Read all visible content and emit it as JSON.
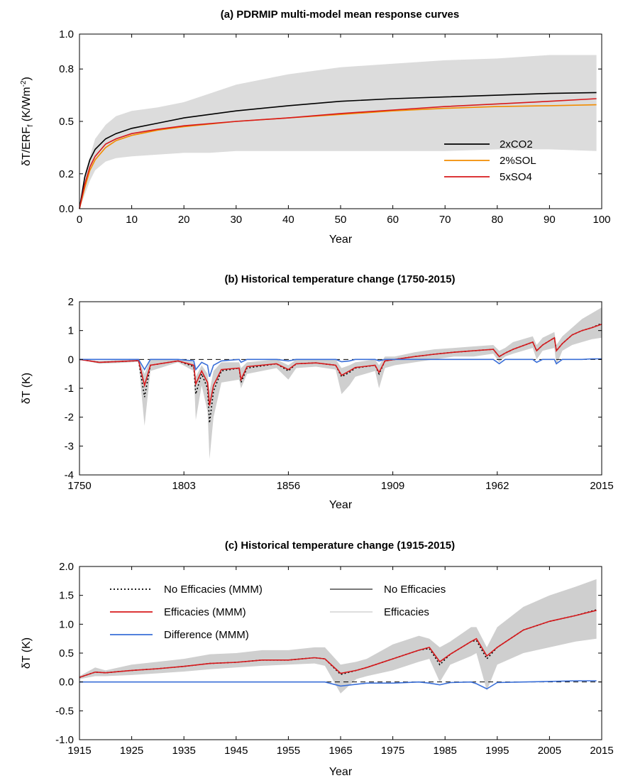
{
  "chart_data": [
    {
      "type": "line",
      "title": "(a) PDRMIP multi-model mean response curves",
      "xlabel": "Year",
      "ylabel_main": "δT/ERF",
      "ylabel_sub": "f",
      "ylabel_unit": " (K/Wm",
      "ylabel_sup": "-2",
      "ylabel_close": ")",
      "xlim": [
        0,
        100
      ],
      "ylim": [
        0,
        1.0
      ],
      "xticks": [
        "0",
        "10",
        "20",
        "30",
        "40",
        "50",
        "60",
        "70",
        "80",
        "90",
        "100"
      ],
      "yticks": [
        "0.0",
        "0.2",
        "0.5",
        "0.8",
        "1.0"
      ],
      "yticks_pos": [
        0.0,
        0.2,
        0.5,
        0.8,
        1.0
      ],
      "legend_position": "lower-right",
      "spread_band": {
        "x": [
          0,
          1,
          2,
          3,
          5,
          7,
          10,
          15,
          20,
          25,
          30,
          40,
          50,
          60,
          70,
          80,
          90,
          99
        ],
        "lower": [
          0.0,
          0.08,
          0.16,
          0.22,
          0.27,
          0.29,
          0.3,
          0.31,
          0.32,
          0.32,
          0.33,
          0.33,
          0.33,
          0.33,
          0.33,
          0.34,
          0.34,
          0.33
        ],
        "upper": [
          0.0,
          0.2,
          0.3,
          0.4,
          0.48,
          0.53,
          0.56,
          0.58,
          0.61,
          0.66,
          0.71,
          0.77,
          0.81,
          0.83,
          0.85,
          0.86,
          0.88,
          0.88
        ]
      },
      "series": [
        {
          "name": "2xCO2",
          "color": "#000000",
          "x": [
            0,
            1,
            2,
            3,
            5,
            7,
            10,
            15,
            20,
            30,
            40,
            50,
            60,
            70,
            80,
            90,
            99
          ],
          "y": [
            0.0,
            0.18,
            0.28,
            0.34,
            0.4,
            0.43,
            0.46,
            0.49,
            0.52,
            0.56,
            0.59,
            0.615,
            0.63,
            0.64,
            0.65,
            0.66,
            0.665
          ]
        },
        {
          "name": "2%SOL",
          "color": "#f28c00",
          "x": [
            0,
            1,
            2,
            3,
            5,
            7,
            10,
            15,
            20,
            30,
            40,
            50,
            60,
            70,
            80,
            90,
            99
          ],
          "y": [
            0.0,
            0.12,
            0.22,
            0.28,
            0.35,
            0.39,
            0.42,
            0.45,
            0.47,
            0.5,
            0.52,
            0.54,
            0.56,
            0.575,
            0.585,
            0.59,
            0.595
          ]
        },
        {
          "name": "5xSO4",
          "color": "#d7191c",
          "x": [
            0,
            1,
            2,
            3,
            5,
            7,
            10,
            15,
            20,
            30,
            40,
            50,
            60,
            70,
            80,
            90,
            99
          ],
          "y": [
            0.0,
            0.14,
            0.24,
            0.3,
            0.37,
            0.4,
            0.43,
            0.455,
            0.475,
            0.5,
            0.52,
            0.545,
            0.565,
            0.585,
            0.6,
            0.615,
            0.63
          ]
        }
      ]
    },
    {
      "type": "line",
      "title": "(b) Historical temperature change (1750-2015)",
      "xlabel": "Year",
      "ylabel": "δT (K)",
      "xlim": [
        1750,
        2015
      ],
      "ylim": [
        -4,
        2
      ],
      "xticks": [
        "1750",
        "1803",
        "1856",
        "1909",
        "1962",
        "2015"
      ],
      "xticks_pos": [
        1750,
        1803,
        1856,
        1909,
        1962,
        2015
      ],
      "yticks": [
        "-4",
        "-3",
        "-2",
        "-1",
        "0",
        "1",
        "2"
      ],
      "yticks_pos": [
        -4,
        -3,
        -2,
        -1,
        0,
        1,
        2
      ],
      "spread_band": {
        "x": [
          1750,
          1760,
          1771,
          1780,
          1783,
          1786,
          1800,
          1808,
          1809,
          1812,
          1815,
          1816,
          1818,
          1822,
          1831,
          1832,
          1835,
          1850,
          1856,
          1860,
          1870,
          1880,
          1883,
          1887,
          1890,
          1900,
          1902,
          1905,
          1910,
          1920,
          1930,
          1940,
          1950,
          1960,
          1963,
          1966,
          1970,
          1980,
          1982,
          1985,
          1991,
          1992,
          1995,
          2000,
          2005,
          2010,
          2015
        ],
        "lower": [
          0.0,
          -0.15,
          -0.12,
          -0.08,
          -2.3,
          -0.4,
          -0.1,
          -0.4,
          -2.1,
          -0.9,
          -1.8,
          -3.45,
          -2.0,
          -0.8,
          -0.7,
          -1.0,
          -0.5,
          -0.3,
          -0.7,
          -0.3,
          -0.25,
          -0.35,
          -1.2,
          -0.9,
          -0.6,
          -0.4,
          -1.0,
          -0.3,
          -0.2,
          -0.1,
          0.0,
          0.1,
          0.1,
          0.2,
          -0.1,
          0.1,
          0.2,
          0.4,
          0.0,
          0.3,
          0.4,
          -0.2,
          0.3,
          0.5,
          0.6,
          0.7,
          0.75
        ],
        "upper": [
          0.0,
          -0.05,
          -0.02,
          0.0,
          -0.5,
          0.0,
          0.0,
          -0.1,
          -0.6,
          -0.2,
          -0.5,
          -1.1,
          -0.4,
          -0.1,
          -0.1,
          -0.3,
          -0.1,
          0.0,
          -0.2,
          0.0,
          0.0,
          0.0,
          -0.3,
          -0.2,
          -0.1,
          0.0,
          -0.2,
          0.1,
          0.1,
          0.25,
          0.35,
          0.4,
          0.45,
          0.5,
          0.3,
          0.4,
          0.6,
          0.8,
          0.5,
          0.75,
          0.95,
          0.5,
          0.8,
          1.1,
          1.4,
          1.6,
          1.8
        ]
      },
      "series": [
        {
          "name": "No Efficacies (MMM)",
          "color": "#000000",
          "dash": "2,3",
          "x": [
            1750,
            1760,
            1771,
            1780,
            1783,
            1786,
            1800,
            1808,
            1809,
            1812,
            1815,
            1816,
            1818,
            1822,
            1831,
            1832,
            1835,
            1850,
            1856,
            1860,
            1870,
            1880,
            1883,
            1887,
            1890,
            1900,
            1902,
            1905,
            1910,
            1920,
            1930,
            1940,
            1950,
            1960,
            1963,
            1966,
            1970,
            1980,
            1982,
            1985,
            1991,
            1992,
            1995,
            2000,
            2005,
            2010,
            2015
          ],
          "y": [
            0.0,
            -0.1,
            -0.07,
            -0.04,
            -1.3,
            -0.2,
            -0.05,
            -0.25,
            -1.2,
            -0.5,
            -1.0,
            -2.2,
            -1.1,
            -0.4,
            -0.3,
            -0.8,
            -0.3,
            -0.15,
            -0.4,
            -0.15,
            -0.12,
            -0.2,
            -0.6,
            -0.45,
            -0.3,
            -0.2,
            -0.5,
            -0.05,
            0.0,
            0.1,
            0.18,
            0.25,
            0.3,
            0.35,
            0.1,
            0.22,
            0.35,
            0.6,
            0.3,
            0.5,
            0.75,
            0.3,
            0.55,
            0.85,
            1.0,
            1.1,
            1.25
          ]
        },
        {
          "name": "Efficacies (MMM)",
          "color": "#d7191c",
          "x": [
            1750,
            1760,
            1771,
            1780,
            1783,
            1786,
            1800,
            1808,
            1809,
            1812,
            1815,
            1816,
            1818,
            1822,
            1831,
            1832,
            1835,
            1850,
            1856,
            1860,
            1870,
            1880,
            1883,
            1887,
            1890,
            1900,
            1902,
            1905,
            1910,
            1920,
            1930,
            1940,
            1950,
            1960,
            1963,
            1966,
            1970,
            1980,
            1982,
            1985,
            1991,
            1992,
            1995,
            2000,
            2005,
            2010,
            2015
          ],
          "y": [
            0.0,
            -0.1,
            -0.07,
            -0.04,
            -0.9,
            -0.2,
            -0.05,
            -0.2,
            -0.85,
            -0.4,
            -0.8,
            -1.6,
            -0.9,
            -0.35,
            -0.3,
            -0.7,
            -0.25,
            -0.15,
            -0.35,
            -0.15,
            -0.12,
            -0.2,
            -0.55,
            -0.4,
            -0.28,
            -0.2,
            -0.45,
            -0.05,
            0.0,
            0.1,
            0.18,
            0.25,
            0.3,
            0.35,
            0.1,
            0.22,
            0.35,
            0.6,
            0.3,
            0.5,
            0.75,
            0.3,
            0.55,
            0.85,
            1.0,
            1.1,
            1.22
          ]
        },
        {
          "name": "Difference (MMM)",
          "color": "#3a6fd8",
          "x": [
            1750,
            1760,
            1771,
            1780,
            1783,
            1786,
            1800,
            1808,
            1809,
            1812,
            1815,
            1816,
            1818,
            1822,
            1831,
            1832,
            1835,
            1850,
            1856,
            1860,
            1870,
            1880,
            1883,
            1887,
            1890,
            1900,
            1902,
            1905,
            1910,
            1920,
            1930,
            1940,
            1950,
            1960,
            1963,
            1966,
            1970,
            1980,
            1982,
            1985,
            1991,
            1992,
            1995,
            2000,
            2005,
            2010,
            2015
          ],
          "y": [
            0.0,
            0.0,
            0.0,
            0.0,
            -0.35,
            0.0,
            0.0,
            -0.05,
            -0.35,
            -0.1,
            -0.2,
            -0.6,
            -0.2,
            -0.05,
            0.0,
            -0.1,
            0.0,
            0.0,
            -0.05,
            0.0,
            0.0,
            0.0,
            -0.08,
            -0.05,
            0.0,
            0.0,
            -0.05,
            0.0,
            0.0,
            0.0,
            0.0,
            0.0,
            0.0,
            0.0,
            -0.15,
            0.0,
            0.0,
            0.0,
            -0.1,
            0.0,
            0.0,
            -0.15,
            0.0,
            0.0,
            0.0,
            0.02,
            0.02
          ]
        }
      ]
    },
    {
      "type": "line",
      "title": "(c) Historical temperature change (1915-2015)",
      "xlabel": "Year",
      "ylabel": "δT (K)",
      "xlim": [
        1915,
        2015
      ],
      "ylim": [
        -1.0,
        2.0
      ],
      "xticks": [
        "1915",
        "1925",
        "1935",
        "1945",
        "1955",
        "1965",
        "1975",
        "1985",
        "1995",
        "2005",
        "2015"
      ],
      "xticks_pos": [
        1915,
        1925,
        1935,
        1945,
        1955,
        1965,
        1975,
        1985,
        1995,
        2005,
        2015
      ],
      "yticks": [
        "-1.0",
        "-0.5",
        "0.0",
        "0.5",
        "1.0",
        "1.5",
        "2.0"
      ],
      "yticks_pos": [
        -1.0,
        -0.5,
        0.0,
        0.5,
        1.0,
        1.5,
        2.0
      ],
      "legend_position": "top-left",
      "spread_band": {
        "x": [
          1915,
          1918,
          1920,
          1925,
          1930,
          1935,
          1940,
          1945,
          1950,
          1955,
          1960,
          1962,
          1965,
          1968,
          1970,
          1975,
          1980,
          1982,
          1984,
          1986,
          1990,
          1991,
          1993,
          1995,
          2000,
          2005,
          2010,
          2014
        ],
        "lower": [
          0.05,
          0.1,
          0.1,
          0.12,
          0.15,
          0.18,
          0.22,
          0.25,
          0.28,
          0.3,
          0.32,
          0.28,
          -0.2,
          0.05,
          0.1,
          0.2,
          0.35,
          0.4,
          0.0,
          0.3,
          0.45,
          0.5,
          -0.15,
          0.3,
          0.5,
          0.6,
          0.7,
          0.75
        ],
        "upper": [
          0.1,
          0.25,
          0.2,
          0.3,
          0.35,
          0.4,
          0.48,
          0.5,
          0.55,
          0.55,
          0.6,
          0.6,
          0.3,
          0.35,
          0.4,
          0.65,
          0.8,
          0.75,
          0.6,
          0.7,
          0.95,
          0.95,
          0.6,
          0.95,
          1.3,
          1.5,
          1.65,
          1.78
        ]
      },
      "series": [
        {
          "name": "No Efficacies (MMM)",
          "color": "#000000",
          "dash": "2,3",
          "x": [
            1915,
            1918,
            1920,
            1925,
            1930,
            1935,
            1940,
            1945,
            1950,
            1955,
            1960,
            1962,
            1965,
            1968,
            1970,
            1975,
            1980,
            1982,
            1984,
            1986,
            1990,
            1991,
            1993,
            1995,
            2000,
            2005,
            2010,
            2014
          ],
          "y": [
            0.08,
            0.17,
            0.16,
            0.2,
            0.23,
            0.27,
            0.32,
            0.34,
            0.38,
            0.38,
            0.42,
            0.4,
            0.13,
            0.2,
            0.25,
            0.4,
            0.55,
            0.58,
            0.3,
            0.48,
            0.7,
            0.72,
            0.4,
            0.6,
            0.9,
            1.05,
            1.15,
            1.25
          ]
        },
        {
          "name": "Efficacies (MMM)",
          "color": "#d7191c",
          "x": [
            1915,
            1918,
            1920,
            1925,
            1930,
            1935,
            1940,
            1945,
            1950,
            1955,
            1960,
            1962,
            1965,
            1968,
            1970,
            1975,
            1980,
            1982,
            1984,
            1986,
            1990,
            1991,
            1993,
            1995,
            2000,
            2005,
            2010,
            2014
          ],
          "y": [
            0.08,
            0.17,
            0.16,
            0.2,
            0.23,
            0.27,
            0.32,
            0.34,
            0.38,
            0.38,
            0.42,
            0.4,
            0.15,
            0.2,
            0.25,
            0.4,
            0.55,
            0.6,
            0.35,
            0.48,
            0.7,
            0.75,
            0.45,
            0.6,
            0.9,
            1.05,
            1.15,
            1.24
          ]
        },
        {
          "name": "Difference (MMM)",
          "color": "#3a6fd8",
          "x": [
            1915,
            1918,
            1920,
            1925,
            1930,
            1935,
            1940,
            1945,
            1950,
            1955,
            1960,
            1962,
            1965,
            1968,
            1970,
            1975,
            1980,
            1982,
            1984,
            1986,
            1990,
            1991,
            1993,
            1995,
            2000,
            2005,
            2010,
            2014
          ],
          "y": [
            0.0,
            0.0,
            0.0,
            0.0,
            0.0,
            0.0,
            0.0,
            0.0,
            0.0,
            0.0,
            0.0,
            0.0,
            -0.07,
            -0.04,
            -0.02,
            -0.02,
            0.0,
            -0.02,
            -0.05,
            -0.01,
            0.0,
            -0.03,
            -0.12,
            -0.01,
            0.0,
            0.01,
            0.02,
            0.02
          ]
        },
        {
          "name": "No Efficacies",
          "color": "#666666",
          "legend_only": true
        },
        {
          "name": "Efficacies",
          "color": "#d9d9d9",
          "legend_only": true
        }
      ]
    }
  ]
}
